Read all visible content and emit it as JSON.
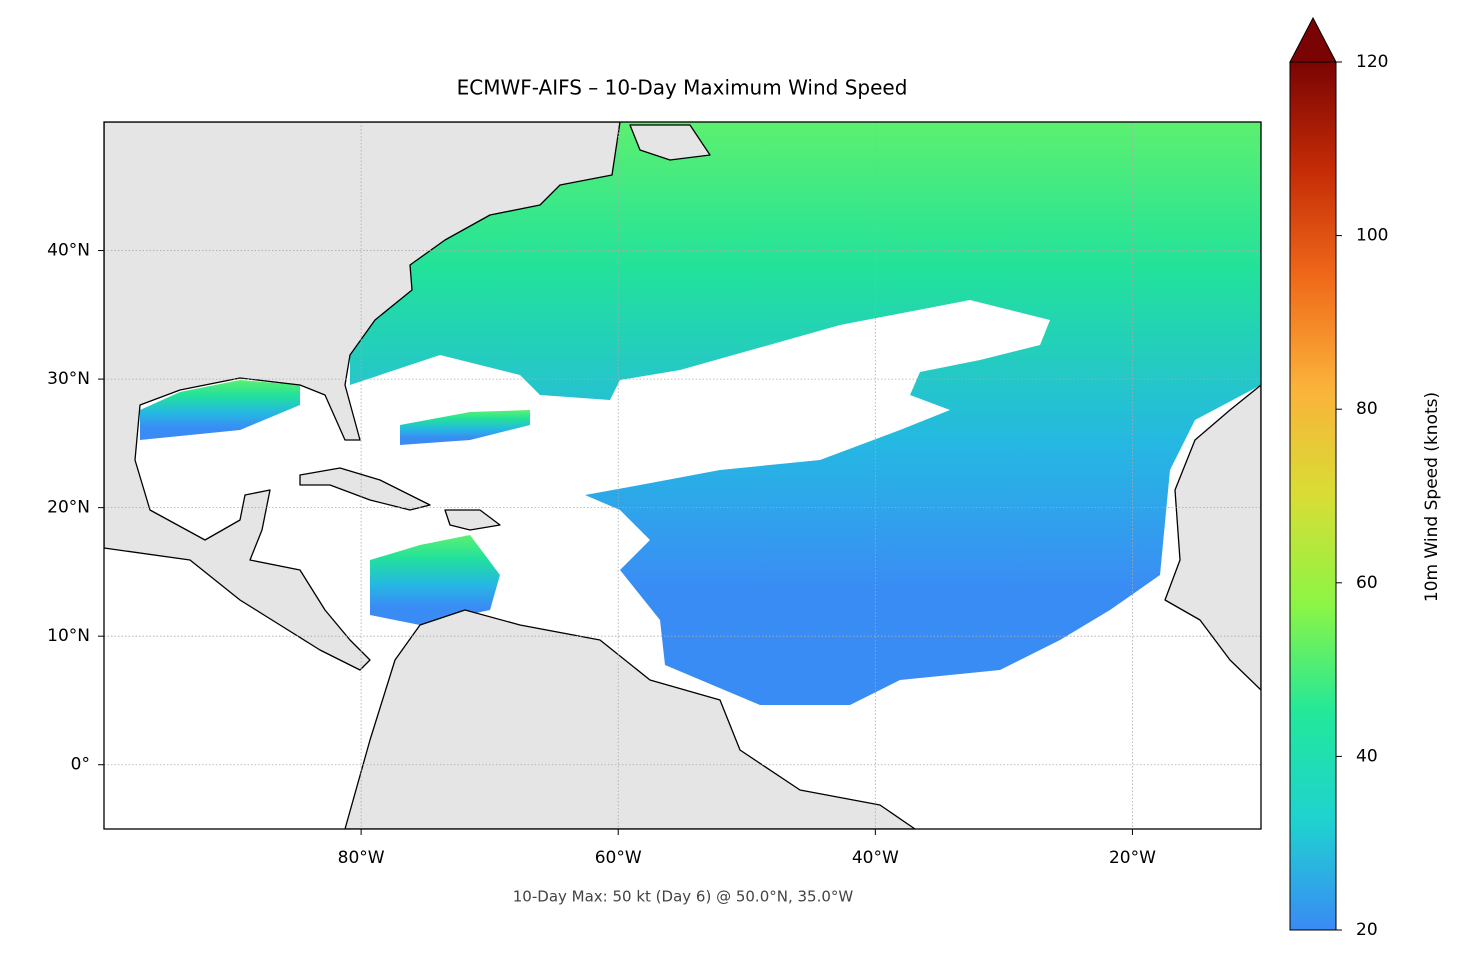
{
  "chart_data": {
    "type": "map",
    "title": "ECMWF-AIFS – 10-Day Maximum Wind Speed",
    "annotation": "10-Day Max: 50 kt (Day 6) @ 50.0°N, 35.0°W",
    "xlim": [
      -100,
      -10
    ],
    "ylim": [
      -5,
      50
    ],
    "xticks": [
      {
        "value": -80,
        "label": "80°W"
      },
      {
        "value": -60,
        "label": "60°W"
      },
      {
        "value": -40,
        "label": "40°W"
      },
      {
        "value": -20,
        "label": "20°W"
      }
    ],
    "yticks": [
      {
        "value": 0,
        "label": "0°"
      },
      {
        "value": 10,
        "label": "10°N"
      },
      {
        "value": 20,
        "label": "20°N"
      },
      {
        "value": 30,
        "label": "30°N"
      },
      {
        "value": 40,
        "label": "40°N"
      }
    ],
    "grid": true,
    "colorbar": {
      "label": "10m Wind Speed (knots)",
      "lim": [
        20,
        120
      ],
      "ticks": [
        20,
        40,
        60,
        80,
        100,
        120
      ],
      "extend": "max",
      "colors": [
        "#3a8af5",
        "#1fd2d0",
        "#22e89a",
        "#8cf545",
        "#d8dd35",
        "#fbb23a",
        "#f06a1a",
        "#c52c06",
        "#7a0403"
      ]
    }
  }
}
